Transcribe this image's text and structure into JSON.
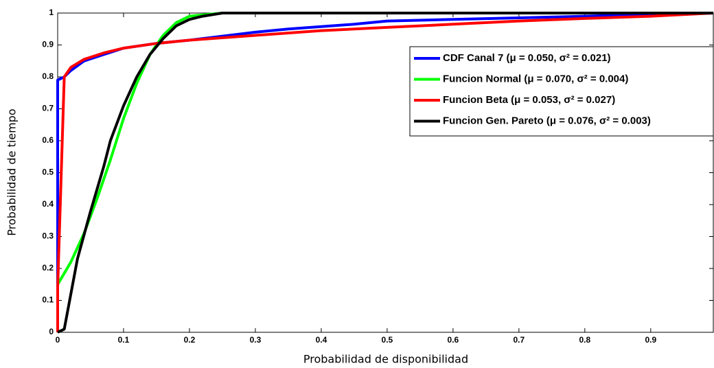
{
  "chart_data": {
    "type": "line",
    "xlabel": "Probabilidad de disponibilidad",
    "ylabel": "Probabilidad de tiempo",
    "xlim": [
      0,
      0.995
    ],
    "ylim": [
      0,
      1
    ],
    "xticks": [
      0,
      0.1,
      0.2,
      0.3,
      0.4,
      0.5,
      0.6,
      0.7,
      0.8,
      0.9
    ],
    "yticks": [
      0,
      0.1,
      0.2,
      0.3,
      0.4,
      0.5,
      0.6,
      0.7,
      0.8,
      0.9,
      1
    ],
    "grid": false,
    "legend": "upper right",
    "series": [
      {
        "name": "CDF Canal 7 (μ = 0.050, σ² = 0.021)",
        "color": "#0000ff",
        "x": [
          0,
          0,
          0.01,
          0.02,
          0.04,
          0.07,
          0.1,
          0.15,
          0.2,
          0.3,
          0.35,
          0.45,
          0.5,
          0.6,
          0.7,
          0.8,
          0.9,
          0.995
        ],
        "values": [
          0,
          0.79,
          0.8,
          0.82,
          0.85,
          0.87,
          0.89,
          0.905,
          0.915,
          0.94,
          0.95,
          0.965,
          0.975,
          0.98,
          0.985,
          0.99,
          0.995,
          1
        ]
      },
      {
        "name": "Funcion Normal (μ = 0.070, σ² = 0.004)",
        "color": "#00ff00",
        "x": [
          0,
          0.02,
          0.04,
          0.06,
          0.08,
          0.1,
          0.12,
          0.14,
          0.16,
          0.18,
          0.2,
          0.25,
          0.995
        ],
        "values": [
          0.15,
          0.22,
          0.31,
          0.42,
          0.54,
          0.67,
          0.78,
          0.87,
          0.93,
          0.97,
          0.99,
          1,
          1
        ]
      },
      {
        "name": "Funcion Beta (μ = 0.053, σ² = 0.027)",
        "color": "#ff0000",
        "x": [
          0,
          0,
          0.01,
          0.02,
          0.04,
          0.07,
          0.1,
          0.15,
          0.2,
          0.3,
          0.4,
          0.5,
          0.6,
          0.7,
          0.8,
          0.9,
          0.995
        ],
        "values": [
          0,
          0.14,
          0.8,
          0.83,
          0.855,
          0.875,
          0.89,
          0.905,
          0.915,
          0.93,
          0.945,
          0.955,
          0.965,
          0.975,
          0.983,
          0.99,
          1
        ]
      },
      {
        "name": "Funcion Gen. Pareto (μ = 0.076, σ² = 0.003)",
        "color": "#000000",
        "x": [
          0,
          0.005,
          0.01,
          0.02,
          0.03,
          0.05,
          0.07,
          0.08,
          0.1,
          0.12,
          0.14,
          0.16,
          0.18,
          0.2,
          0.22,
          0.25,
          0.995
        ],
        "values": [
          0,
          0.005,
          0.01,
          0.12,
          0.23,
          0.38,
          0.52,
          0.6,
          0.71,
          0.8,
          0.87,
          0.92,
          0.96,
          0.98,
          0.99,
          1,
          1
        ]
      }
    ]
  }
}
